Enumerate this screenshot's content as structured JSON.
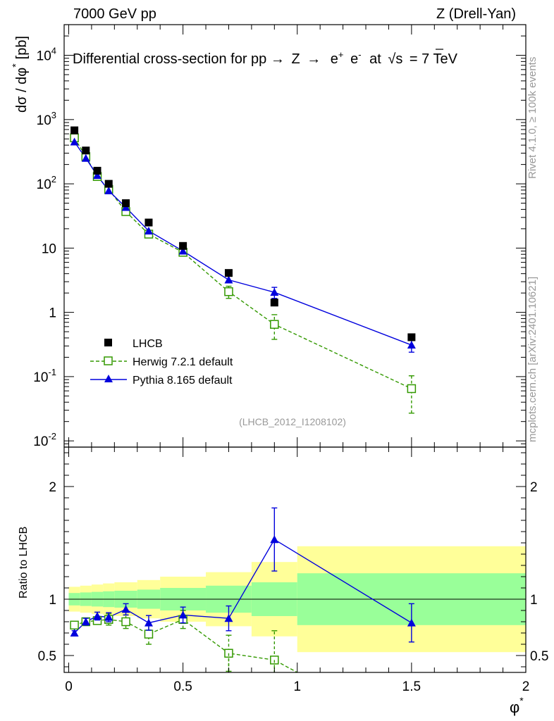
{
  "header": {
    "left": "7000 GeV pp",
    "right": "Z (Drell-Yan)"
  },
  "side_labels": {
    "rivet": "Rivet 4.1.0, ≥ 100k events",
    "mcplots": "mcplots.cern.ch [arXiv:2401.10621]"
  },
  "watermark": "(LHCB_2012_I1208102)",
  "colors": {
    "data": "#000000",
    "herwig": "#339900",
    "pythia": "#0000dd",
    "band_outer": "#ffff99",
    "band_inner": "#99ff99"
  },
  "chart_data": [
    {
      "type": "scatter",
      "title": "Differential cross-section for pp → Z → e⁺ e⁻ at √s = 7 TeV",
      "title_parts": {
        "lead": "Differential cross-section for pp",
        "arrow1": "→",
        "z": "Z",
        "arrow2": "→",
        "eplus": "e",
        "plus": "+",
        "eminus": "e",
        "minus": "-",
        "at": "at",
        "s": "s",
        "energy": "= 7 TeV"
      },
      "ylabel": "dσ / dφ* [pb]",
      "ylabel_parts": {
        "main": "dσ / dφ",
        "star": "*",
        "unit": "[pb]"
      },
      "yscale": "log",
      "ylim": [
        0.008,
        30000
      ],
      "xlim": [
        -0.02,
        2.0
      ],
      "ytick_labels": [
        {
          "base": "10",
          "exp": "-2",
          "value": 0.01
        },
        {
          "base": "10",
          "exp": "-1",
          "value": 0.1
        },
        {
          "base": "1",
          "exp": "",
          "value": 1
        },
        {
          "base": "10",
          "exp": "",
          "value": 10
        },
        {
          "base": "10",
          "exp": "2",
          "value": 100
        },
        {
          "base": "10",
          "exp": "3",
          "value": 1000
        },
        {
          "base": "10",
          "exp": "4",
          "value": 10000
        }
      ],
      "legend_position": "bottom-left",
      "series": [
        {
          "name": "LHCB",
          "style": "filled-square",
          "x": [
            0.025,
            0.075,
            0.125,
            0.175,
            0.25,
            0.35,
            0.5,
            0.7,
            0.9,
            1.5
          ],
          "y": [
            680,
            330,
            160,
            100,
            50,
            25,
            10.8,
            4.1,
            1.42,
            0.41
          ]
        },
        {
          "name": "Herwig 7.2.1 default",
          "style": "open-square-dashed",
          "x": [
            0.025,
            0.075,
            0.125,
            0.175,
            0.25,
            0.35,
            0.5,
            0.7,
            0.9,
            1.5
          ],
          "y": [
            520,
            265,
            130,
            82,
            37,
            16.5,
            8.6,
            2.1,
            0.65,
            0.065
          ],
          "err": [
            0,
            0,
            0,
            0,
            0,
            0,
            0,
            0.45,
            0.27,
            0.038
          ]
        },
        {
          "name": "Pythia 8.165 default",
          "style": "filled-triangle-solid",
          "x": [
            0.025,
            0.075,
            0.125,
            0.175,
            0.25,
            0.35,
            0.5,
            0.7,
            0.9,
            1.5
          ],
          "y": [
            450,
            250,
            135,
            78,
            43,
            18.5,
            9.0,
            3.2,
            2.05,
            0.31
          ],
          "err": [
            0,
            0,
            0,
            0,
            0,
            0,
            0,
            0,
            0.4,
            0.07
          ]
        }
      ]
    },
    {
      "type": "scatter",
      "title": "",
      "ylabel": "Ratio to LHCB",
      "xlabel": "φ*",
      "xlabel_parts": {
        "main": "φ",
        "star": "*"
      },
      "ylim": [
        0.35,
        2.35
      ],
      "xlim": [
        -0.02,
        2.0
      ],
      "yticks": [
        "0.5",
        "1",
        "2"
      ],
      "ytick_values": [
        0.5,
        1,
        2
      ],
      "xticks": [
        "0",
        "0.5",
        "1",
        "1.5",
        "2"
      ],
      "xtick_values": [
        0,
        0.5,
        1,
        1.5,
        2
      ],
      "reference_line": 1,
      "uncertainty_bands": {
        "edges": [
          0,
          0.05,
          0.1,
          0.15,
          0.2,
          0.3,
          0.4,
          0.6,
          0.8,
          1.0,
          2.0
        ],
        "inner": [
          0.055,
          0.06,
          0.065,
          0.07,
          0.075,
          0.085,
          0.1,
          0.12,
          0.15,
          0.23,
          0.23
        ],
        "outer": [
          0.11,
          0.12,
          0.13,
          0.14,
          0.15,
          0.17,
          0.2,
          0.24,
          0.33,
          0.47,
          0.47
        ]
      },
      "series": [
        {
          "name": "Herwig 7.2.1 default",
          "x": [
            0.025,
            0.075,
            0.125,
            0.175,
            0.25,
            0.35,
            0.5,
            0.7,
            0.9,
            1.0
          ],
          "y": [
            0.77,
            0.8,
            0.81,
            0.82,
            0.8,
            0.69,
            0.82,
            0.52,
            0.46,
            0.35
          ],
          "err": [
            0.015,
            0.025,
            0.03,
            0.05,
            0.06,
            0.09,
            0.08,
            0.16,
            0.26,
            0
          ],
          "marker": [
            true,
            true,
            true,
            true,
            true,
            true,
            true,
            true,
            true,
            false
          ]
        },
        {
          "name": "Pythia 8.165 default",
          "x": [
            0.025,
            0.075,
            0.125,
            0.175,
            0.25,
            0.35,
            0.5,
            0.7,
            0.9,
            1.5
          ],
          "y": [
            0.7,
            0.8,
            0.85,
            0.84,
            0.91,
            0.79,
            0.86,
            0.83,
            1.53,
            0.79
          ],
          "err": [
            0.02,
            0.03,
            0.035,
            0.04,
            0.05,
            0.065,
            0.07,
            0.11,
            0.28,
            0.17
          ]
        }
      ]
    }
  ]
}
